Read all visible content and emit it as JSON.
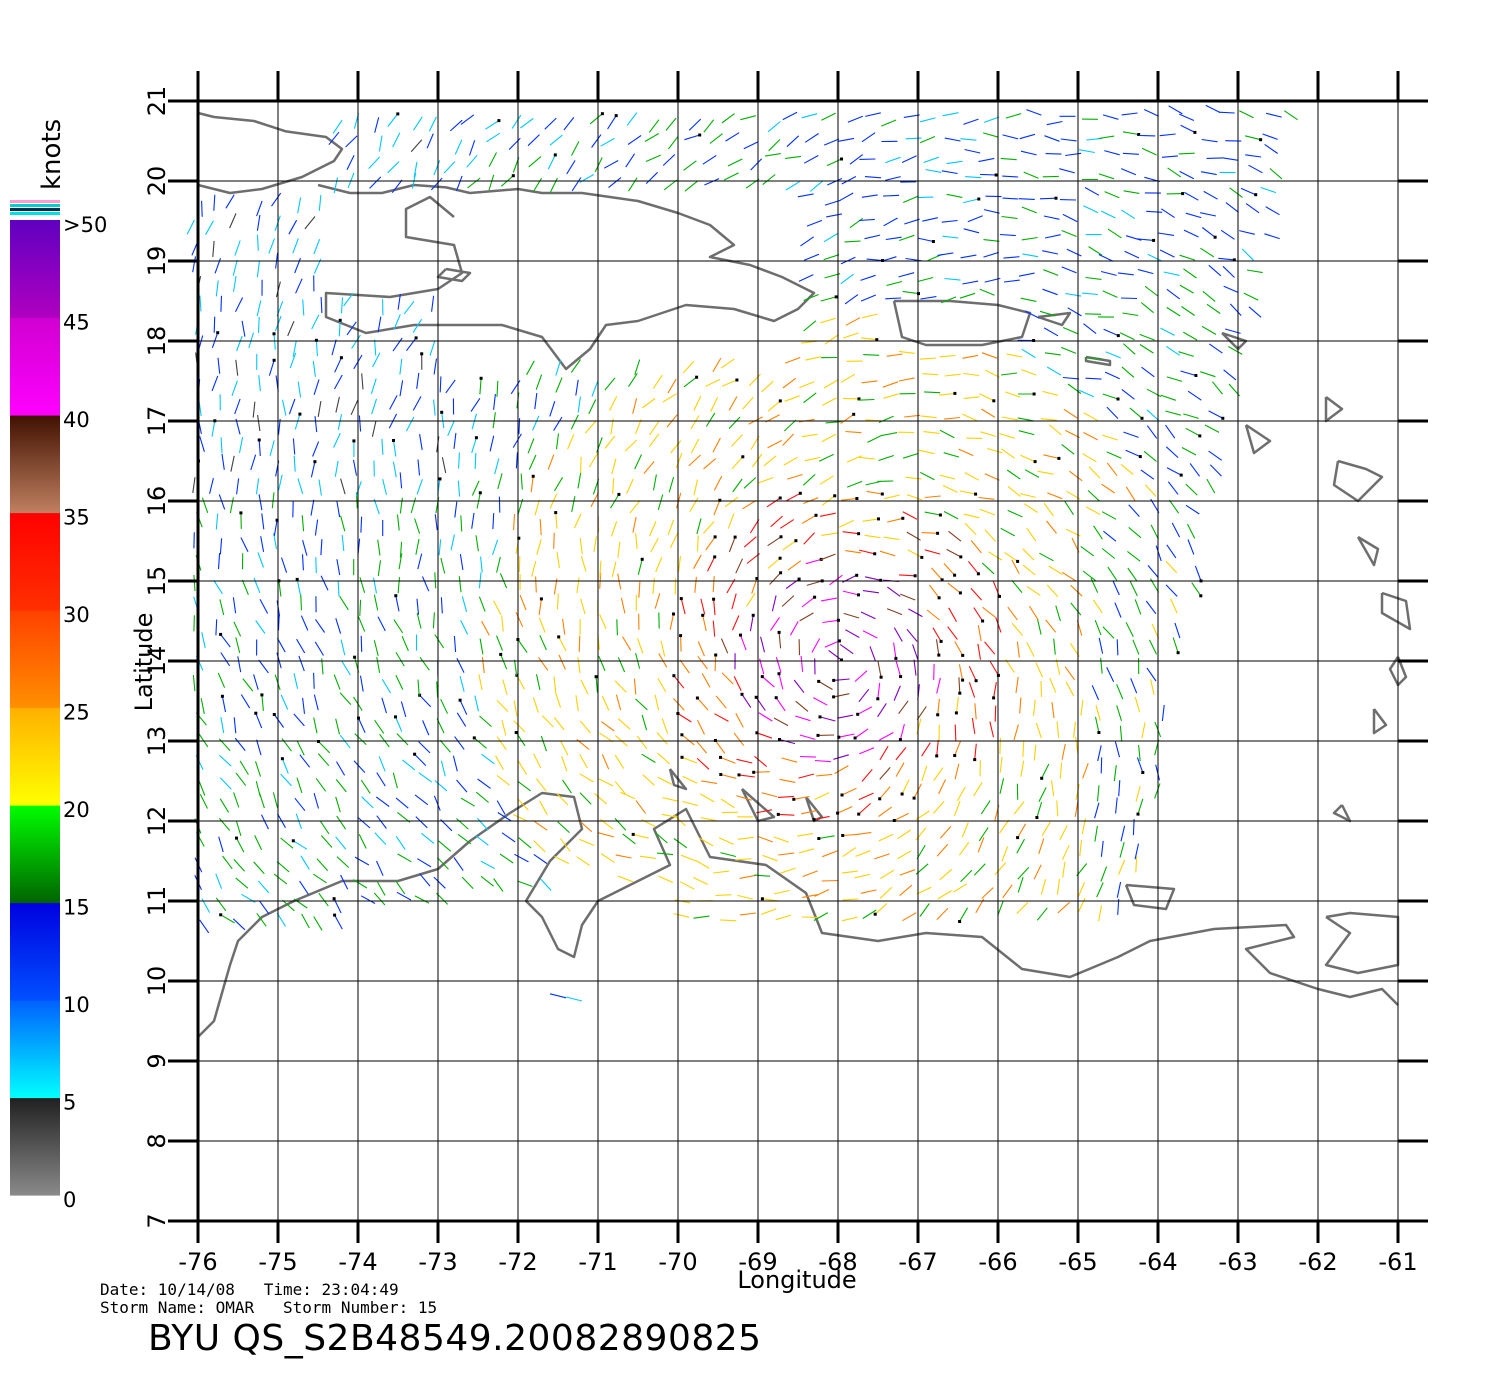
{
  "map": {
    "lon_ticks": [
      "-76",
      "-75",
      "-74",
      "-73",
      "-72",
      "-71",
      "-70",
      "-69",
      "-68",
      "-67",
      "-66",
      "-65",
      "-64",
      "-63",
      "-62",
      "-61"
    ],
    "lat_ticks": [
      "7",
      "8",
      "9",
      "10",
      "11",
      "12",
      "13",
      "14",
      "15",
      "16",
      "17",
      "18",
      "19",
      "20",
      "21"
    ],
    "lon_range": [
      -76,
      -61
    ],
    "lat_range": [
      7,
      21
    ],
    "xlabel": "Longitude",
    "ylabel": "Latitude",
    "coast_color": "#6e6e6e",
    "grid_color": "#000000"
  },
  "legend": {
    "unit": "knots",
    "labels": [
      "0",
      "5",
      "10",
      "15",
      "20",
      "25",
      "30",
      "35",
      "40",
      "45",
      ">50"
    ],
    "bands": [
      {
        "from": 0,
        "to": 5,
        "colors": [
          "#8a8a8a",
          "#202020"
        ]
      },
      {
        "from": 5,
        "to": 10,
        "colors": [
          "#00ffff",
          "#0060ff"
        ]
      },
      {
        "from": 10,
        "to": 15,
        "colors": [
          "#0050ff",
          "#0000e0"
        ]
      },
      {
        "from": 15,
        "to": 20,
        "colors": [
          "#006400",
          "#00ff00"
        ]
      },
      {
        "from": 20,
        "to": 25,
        "colors": [
          "#ffff00",
          "#ffb000"
        ]
      },
      {
        "from": 25,
        "to": 30,
        "colors": [
          "#ff9000",
          "#ff4000"
        ]
      },
      {
        "from": 30,
        "to": 35,
        "colors": [
          "#ff3000",
          "#ff0000"
        ]
      },
      {
        "from": 35,
        "to": 40,
        "colors": [
          "#c08060",
          "#401000"
        ]
      },
      {
        "from": 40,
        "to": 45,
        "colors": [
          "#ff00ff",
          "#d000d0"
        ]
      },
      {
        "from": 45,
        "to": 50,
        "colors": [
          "#b000c0",
          "#6000c0"
        ]
      }
    ]
  },
  "info": {
    "date_line": "Date: 10/14/08   Time: 23:04:49",
    "storm_line": "Storm Name: OMAR   Storm Number: 15",
    "product_title": "BYU  QS_S2B48549.20082890825"
  }
}
